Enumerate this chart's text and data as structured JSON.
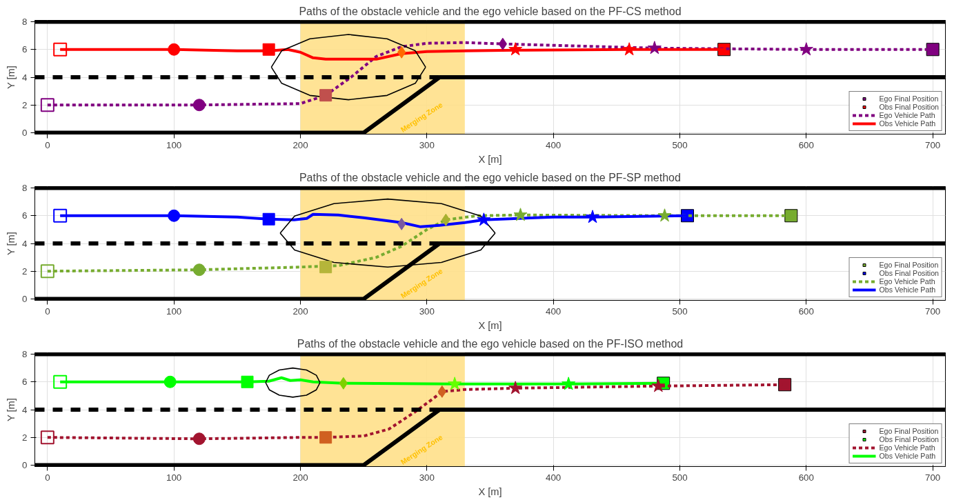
{
  "chart_data": [
    {
      "type": "line",
      "title": "Paths of the obstacle vehicle and the ego vehicle based on the PF-CS method",
      "xlabel": "X [m]",
      "ylabel": "Y [m]",
      "xlim": [
        -10,
        710
      ],
      "ylim": [
        -0.1,
        8.1
      ],
      "xticks": [
        0,
        100,
        200,
        300,
        400,
        500,
        600,
        700
      ],
      "yticks": [
        0,
        2,
        4,
        6,
        8
      ],
      "grid": true,
      "legend": "bottom right",
      "bands": [
        {
          "axis": "x",
          "from": 200,
          "to": 330,
          "label": "Merging Zone",
          "color": "#ffe08a"
        }
      ],
      "series": [
        {
          "name": "Ego Vehicle Path",
          "color": "#800080",
          "line_style": "dotted",
          "x": [
            0,
            120,
            200,
            220,
            240,
            260,
            280,
            300,
            330,
            360,
            400,
            480,
            535,
            600,
            700
          ],
          "values": [
            2,
            2.0,
            2.1,
            2.7,
            4,
            5.5,
            6.2,
            6.45,
            6.5,
            6.4,
            6.3,
            6.1,
            6.05,
            6,
            6
          ]
        },
        {
          "name": "Obs Vehicle Path",
          "color": "#ff0000",
          "x": [
            10,
            100,
            150,
            175,
            190,
            200,
            210,
            220,
            260,
            280,
            300,
            330,
            370,
            460,
            535
          ],
          "values": [
            6,
            6,
            5.9,
            5.9,
            6.0,
            5.8,
            5.4,
            5.3,
            5.3,
            5.7,
            5.85,
            5.9,
            5.95,
            6,
            6
          ]
        },
        {
          "color": "#000000",
          "x": [
            -10,
            710
          ],
          "values": [
            8,
            8
          ]
        },
        {
          "color": "#000000",
          "x": [
            -10,
            250,
            310,
            710
          ],
          "values": [
            0,
            0,
            4,
            4
          ]
        },
        {
          "color": "#000000",
          "line_style": "dashed",
          "x": [
            -10,
            310
          ],
          "values": [
            4,
            4
          ]
        },
        {
          "color": "#000000",
          "x": [
            177,
            185.2,
            207.5,
            238,
            268.5,
            290.8,
            299
          ],
          "values": [
            4.73,
            5.91,
            6.77,
            7.08,
            6.77,
            5.91,
            4.73
          ]
        },
        {
          "color": "#000000",
          "x": [
            177,
            185.2,
            207.5,
            238,
            268.5,
            290.8,
            299
          ],
          "values": [
            4.73,
            3.56,
            2.69,
            2.38,
            2.69,
            3.56,
            4.73
          ]
        },
        {
          "type": "scatter",
          "marker": "square",
          "color": "#800080",
          "x": [
            0
          ],
          "values": [
            2
          ]
        },
        {
          "type": "scatter",
          "marker": "square",
          "color": "#ff0000",
          "x": [
            10
          ],
          "values": [
            6
          ]
        },
        {
          "type": "scatter",
          "marker": "circle",
          "colors": [
            "#800080",
            "#ff0000"
          ],
          "x": [
            120,
            100
          ],
          "values": [
            2,
            6
          ]
        },
        {
          "type": "scatter",
          "marker": "square",
          "colors": [
            "#c0504d",
            "#ff0000"
          ],
          "x": [
            220,
            175
          ],
          "values": [
            2.7,
            6
          ]
        },
        {
          "type": "scatter",
          "marker": "diamond",
          "colors": [
            "#800080",
            "#ff6a00"
          ],
          "x": [
            360,
            280
          ],
          "values": [
            6.4,
            5.8
          ]
        },
        {
          "type": "scatter",
          "marker": "star",
          "colors": [
            "#800080",
            "#800080",
            "#ff0000",
            "#ff0000"
          ],
          "x": [
            480,
            600,
            370,
            460
          ],
          "values": [
            6.1,
            6,
            6,
            6
          ]
        },
        {
          "type": "scatter",
          "marker": "square",
          "name": "Ego Final Position",
          "color": "#800080",
          "x": [
            700
          ],
          "values": [
            6
          ]
        },
        {
          "type": "scatter",
          "marker": "square",
          "name": "Obs Final Position",
          "color": "#ff0000",
          "x": [
            535
          ],
          "values": [
            6
          ]
        }
      ]
    },
    {
      "type": "line",
      "title": "Paths of the obstacle vehicle and the ego vehicle based on the PF-SP method",
      "xlabel": "X [m]",
      "ylabel": "Y [m]",
      "xlim": [
        -10,
        710
      ],
      "ylim": [
        -0.1,
        8.1
      ],
      "xticks": [
        0,
        100,
        200,
        300,
        400,
        500,
        600,
        700
      ],
      "yticks": [
        0,
        2,
        4,
        6,
        8
      ],
      "grid": true,
      "legend": "bottom right",
      "bands": [
        {
          "axis": "x",
          "from": 200,
          "to": 330,
          "label": "Merging Zone",
          "color": "#ffe08a"
        }
      ],
      "series": [
        {
          "name": "Ego Vehicle Path",
          "color": "#77ac30",
          "line_style": "dotted",
          "x": [
            0,
            120,
            200,
            230,
            260,
            280,
            300,
            315,
            340,
            374,
            488,
            588
          ],
          "values": [
            2,
            2.1,
            2.3,
            2.4,
            3,
            3.8,
            5.0,
            5.7,
            6.0,
            6.05,
            6.0,
            6.0
          ]
        },
        {
          "name": "Obs Vehicle Path",
          "color": "#0000ff",
          "x": [
            10,
            100,
            150,
            175,
            195,
            205,
            210,
            230,
            250,
            280,
            295,
            310,
            330,
            345,
            400,
            431,
            506
          ],
          "values": [
            6,
            6,
            5.9,
            5.75,
            5.7,
            5.8,
            6.1,
            6.05,
            5.85,
            5.5,
            5.2,
            5.3,
            5.5,
            5.7,
            5.9,
            5.9,
            6
          ]
        },
        {
          "color": "#000000",
          "x": [
            -10,
            710
          ],
          "values": [
            8,
            8
          ]
        },
        {
          "color": "#000000",
          "x": [
            -10,
            250,
            310,
            710
          ],
          "values": [
            0,
            0,
            4,
            4
          ]
        },
        {
          "color": "#000000",
          "line_style": "dashed",
          "x": [
            -10,
            310
          ],
          "values": [
            4,
            4
          ]
        },
        {
          "color": "#000000",
          "x": [
            184,
            195.4,
            226.5,
            269,
            311.5,
            342.6,
            354
          ],
          "values": [
            4.75,
            5.98,
            6.87,
            7.2,
            6.87,
            5.98,
            4.75
          ]
        },
        {
          "color": "#000000",
          "x": [
            184,
            195.4,
            226.5,
            269,
            311.5,
            342.6,
            354
          ],
          "values": [
            4.75,
            3.53,
            2.63,
            2.3,
            2.63,
            3.53,
            4.75
          ]
        },
        {
          "type": "scatter",
          "marker": "square",
          "color": "#77ac30",
          "x": [
            0
          ],
          "values": [
            2
          ]
        },
        {
          "type": "scatter",
          "marker": "square",
          "color": "#0000ff",
          "x": [
            10
          ],
          "values": [
            6
          ]
        },
        {
          "type": "scatter",
          "marker": "circle",
          "colors": [
            "#77ac30",
            "#0000ff"
          ],
          "x": [
            120,
            100
          ],
          "values": [
            2.1,
            6
          ]
        },
        {
          "type": "scatter",
          "marker": "square",
          "colors": [
            "#b5b53a",
            "#0000ff"
          ],
          "x": [
            220,
            175
          ],
          "values": [
            2.3,
            5.75
          ]
        },
        {
          "type": "scatter",
          "marker": "diamond",
          "colors": [
            "#a8b030",
            "#7a5aa0"
          ],
          "x": [
            315,
            280
          ],
          "values": [
            5.7,
            5.4
          ]
        },
        {
          "type": "scatter",
          "marker": "star",
          "colors": [
            "#77ac30",
            "#77ac30",
            "#0000ff",
            "#0000ff"
          ],
          "x": [
            374,
            488,
            345,
            431
          ],
          "values": [
            6.05,
            6.0,
            5.7,
            5.9
          ]
        },
        {
          "type": "scatter",
          "marker": "square",
          "name": "Ego Final Position",
          "color": "#77ac30",
          "x": [
            588
          ],
          "values": [
            6
          ]
        },
        {
          "type": "scatter",
          "marker": "square",
          "name": "Obs Final Position",
          "color": "#0000ff",
          "x": [
            506
          ],
          "values": [
            6
          ]
        }
      ]
    },
    {
      "type": "line",
      "title": "Paths of the obstacle vehicle and the ego vehicle based on the PF-ISO method",
      "xlabel": "X [m]",
      "ylabel": "Y [m]",
      "xlim": [
        -10,
        710
      ],
      "ylim": [
        -0.1,
        8.1
      ],
      "xticks": [
        0,
        100,
        200,
        300,
        400,
        500,
        600,
        700
      ],
      "yticks": [
        0,
        2,
        4,
        6,
        8
      ],
      "grid": true,
      "legend": "bottom right",
      "bands": [
        {
          "axis": "x",
          "from": 200,
          "to": 330,
          "label": "Merging Zone",
          "color": "#ffe08a"
        }
      ],
      "series": [
        {
          "name": "Ego Vehicle Path",
          "color": "#a2142f",
          "line_style": "dotted",
          "x": [
            0,
            120,
            200,
            220,
            250,
            270,
            290,
            305,
            312,
            330,
            370,
            483,
            583
          ],
          "values": [
            2,
            1.9,
            2.0,
            2.0,
            2.1,
            2.6,
            3.8,
            4.8,
            5.3,
            5.45,
            5.55,
            5.7,
            5.8
          ]
        },
        {
          "name": "Obs Vehicle Path",
          "color": "#00ff00",
          "x": [
            10,
            97,
            158,
            175,
            185,
            192,
            200,
            210,
            234,
            322,
            412,
            487
          ],
          "values": [
            6,
            6,
            6,
            6.05,
            6.3,
            6.1,
            6.15,
            6.0,
            5.9,
            5.85,
            5.85,
            5.9
          ]
        },
        {
          "color": "#000000",
          "x": [
            -10,
            710
          ],
          "values": [
            8,
            8
          ]
        },
        {
          "color": "#000000",
          "x": [
            -10,
            250,
            310,
            710
          ],
          "values": [
            0,
            0,
            4,
            4
          ]
        },
        {
          "color": "#000000",
          "line_style": "dashed",
          "x": [
            -10,
            310
          ],
          "values": [
            4,
            4
          ]
        },
        {
          "color": "#000000",
          "x": [
            172.5,
            175.4,
            183.3,
            194,
            204.8,
            212.6,
            215.5
          ],
          "values": [
            5.95,
            6.48,
            6.86,
            7.0,
            6.86,
            6.48,
            5.95
          ]
        },
        {
          "color": "#000000",
          "x": [
            172.5,
            175.4,
            183.3,
            194,
            204.8,
            212.6,
            215.5
          ],
          "values": [
            5.95,
            5.43,
            5.04,
            4.9,
            5.04,
            5.43,
            5.95
          ]
        },
        {
          "type": "scatter",
          "marker": "square",
          "color": "#a2142f",
          "x": [
            0
          ],
          "values": [
            2
          ]
        },
        {
          "type": "scatter",
          "marker": "square",
          "color": "#00ff00",
          "x": [
            10
          ],
          "values": [
            6
          ]
        },
        {
          "type": "scatter",
          "marker": "circle",
          "colors": [
            "#a2142f",
            "#00ff00"
          ],
          "x": [
            120,
            97
          ],
          "values": [
            1.9,
            6
          ]
        },
        {
          "type": "scatter",
          "marker": "square",
          "colors": [
            "#d06020",
            "#00ff00"
          ],
          "x": [
            220,
            158
          ],
          "values": [
            2.0,
            6
          ]
        },
        {
          "type": "scatter",
          "marker": "diamond",
          "colors": [
            "#d06020",
            "#7fd000"
          ],
          "x": [
            312,
            234
          ],
          "values": [
            5.3,
            5.9
          ]
        },
        {
          "type": "scatter",
          "marker": "star",
          "colors": [
            "#a2142f",
            "#a2142f",
            "#66ff00",
            "#00ff00"
          ],
          "x": [
            370,
            483,
            322,
            412
          ],
          "values": [
            5.55,
            5.7,
            5.85,
            5.85
          ]
        },
        {
          "type": "scatter",
          "marker": "square",
          "name": "Ego Final Position",
          "color": "#a2142f",
          "x": [
            583
          ],
          "values": [
            5.8
          ]
        },
        {
          "type": "scatter",
          "marker": "square",
          "name": "Obs Final Position",
          "color": "#00ff00",
          "x": [
            487
          ],
          "values": [
            5.9
          ]
        }
      ]
    }
  ]
}
